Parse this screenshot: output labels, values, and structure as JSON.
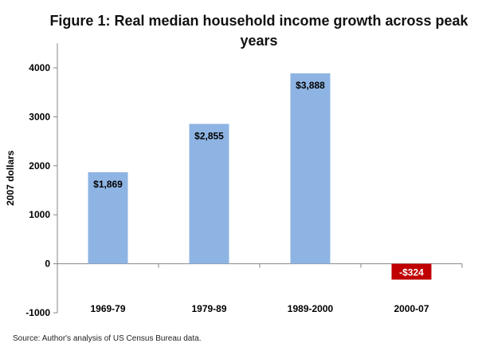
{
  "chart_data": {
    "type": "bar",
    "title": "Figure 1: Real median household income growth across peak years",
    "ylabel": "2007 dollars",
    "xlabel": "",
    "categories": [
      "1969-79",
      "1979-89",
      "1989-2000",
      "2000-07"
    ],
    "values": [
      1869,
      2855,
      3888,
      -324
    ],
    "data_labels": [
      "$1,869",
      "$2,855",
      "$3,888",
      "-$324"
    ],
    "yticks": [
      -1000,
      0,
      1000,
      2000,
      3000,
      4000
    ],
    "ytick_labels": [
      "-1000",
      "0",
      "1000",
      "2000",
      "3000",
      "4000"
    ],
    "ylim": [
      -1000,
      4500
    ],
    "colors": {
      "positive": "#8eb4e3",
      "negative": "#c00000",
      "positive_label": "#000000",
      "negative_label": "#ffffff"
    },
    "grid": false,
    "legend": "none"
  },
  "source": "Source: Author's analysis of US Census Bureau data."
}
